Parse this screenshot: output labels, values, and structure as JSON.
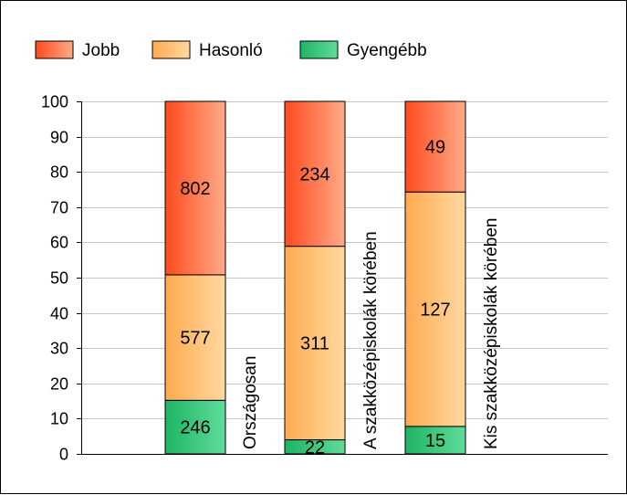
{
  "chart_data": {
    "type": "bar",
    "stacked": true,
    "categories": [
      "Országosan",
      "A szakközépiskolák körében",
      "Kis szakközépiskolák körében"
    ],
    "series": [
      {
        "name": "Gyengébb",
        "values": [
          15.2,
          4.0,
          7.8
        ],
        "labels": [
          "246",
          "22",
          "15"
        ],
        "color_start": "#1eb464",
        "color_end": "#5fdc9a"
      },
      {
        "name": "Hasonló",
        "values": [
          35.6,
          54.9,
          66.5
        ],
        "labels": [
          "577",
          "311",
          "127"
        ],
        "color_start": "#ffaa50",
        "color_end": "#ffd9a0"
      },
      {
        "name": "Jobb",
        "values": [
          49.2,
          41.1,
          25.7
        ],
        "labels": [
          "802",
          "234",
          "49"
        ],
        "color_start": "#ff4a1e",
        "color_end": "#ffab88"
      }
    ],
    "legend_order": [
      "Jobb",
      "Hasonló",
      "Gyengébb"
    ],
    "ylim": [
      0,
      100
    ],
    "yticks": [
      0,
      10,
      20,
      30,
      40,
      50,
      60,
      70,
      80,
      90,
      100
    ],
    "grid": true,
    "legend_position": "top-left"
  }
}
